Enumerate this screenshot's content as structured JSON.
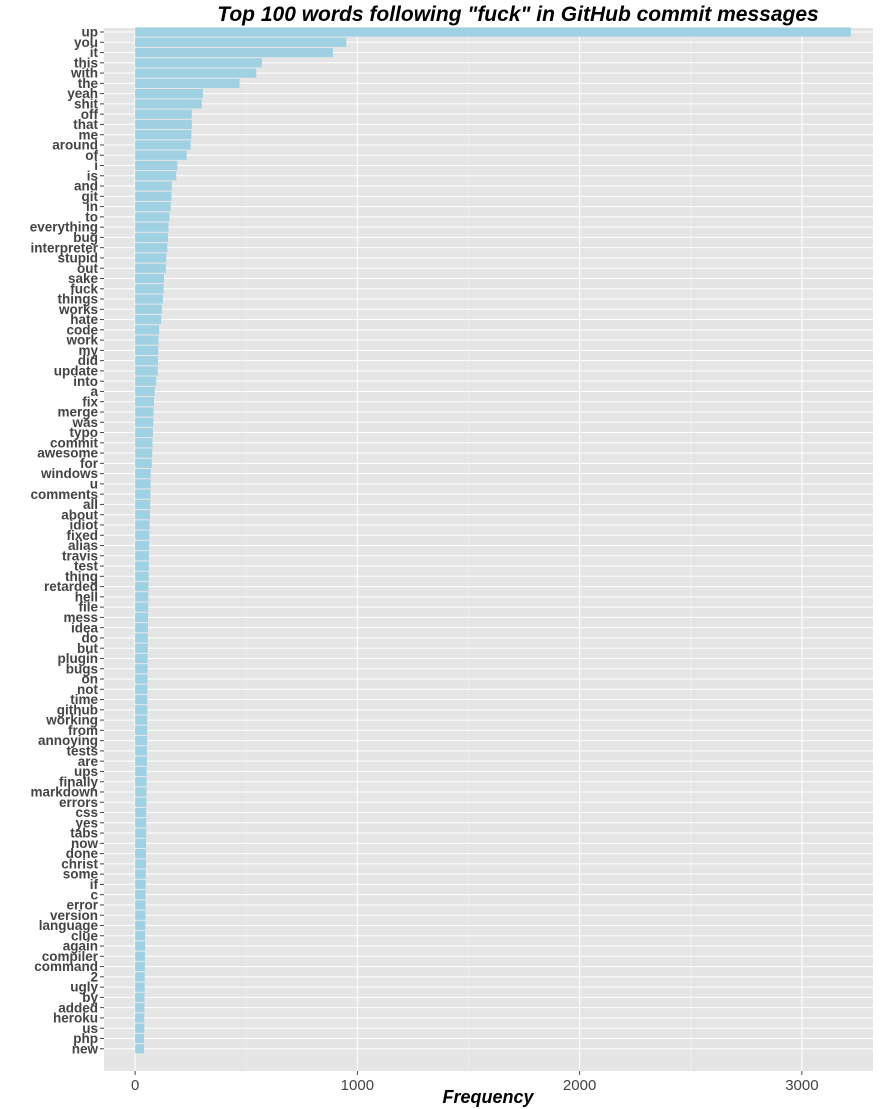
{
  "chart_data": {
    "type": "bar",
    "orientation": "horizontal",
    "title": "Top 100 words following \"fuck\" in GitHub commit messages",
    "xlabel": "Frequency",
    "ylabel": "",
    "xlim": [
      -140,
      3320
    ],
    "xticks": [
      0,
      1000,
      2000,
      3000
    ],
    "xtick_labels": [
      "0",
      "1000",
      "2000",
      "3000"
    ],
    "grid": true,
    "bar_color": "#9fd1e3",
    "panel_background": "#e5e5e5",
    "categories": [
      "up",
      "you",
      "it",
      "this",
      "with",
      "the",
      "yeah",
      "shit",
      "off",
      "that",
      "me",
      "around",
      "of",
      "i",
      "is",
      "and",
      "git",
      "in",
      "to",
      "everything",
      "bug",
      "interpreter",
      "stupid",
      "out",
      "sake",
      "fuck",
      "things",
      "works",
      "hate",
      "code",
      "work",
      "my",
      "did",
      "update",
      "into",
      "a",
      "fix",
      "merge",
      "was",
      "typo",
      "commit",
      "awesome",
      "for",
      "windows",
      "u",
      "comments",
      "all",
      "about",
      "idiot",
      "fixed",
      "alias",
      "travis",
      "test",
      "thing",
      "retarded",
      "hell",
      "file",
      "mess",
      "idea",
      "do",
      "but",
      "plugin",
      "bugs",
      "on",
      "not",
      "time",
      "github",
      "working",
      "from",
      "annoying",
      "tests",
      "are",
      "ups",
      "finally",
      "markdown",
      "errors",
      "css",
      "yes",
      "tabs",
      "now",
      "done",
      "christ",
      "some",
      "if",
      "c",
      "error",
      "version",
      "language",
      "clue",
      "again",
      "compiler",
      "command",
      "2",
      "ugly",
      "by",
      "added",
      "heroku",
      "us",
      "php",
      "new"
    ],
    "values": [
      3220,
      950,
      890,
      570,
      545,
      470,
      305,
      300,
      255,
      255,
      253,
      250,
      232,
      190,
      185,
      165,
      163,
      160,
      155,
      150,
      148,
      145,
      140,
      138,
      130,
      128,
      125,
      120,
      117,
      108,
      105,
      104,
      103,
      102,
      95,
      88,
      85,
      83,
      82,
      80,
      78,
      77,
      75,
      70,
      70,
      69,
      68,
      67,
      65,
      64,
      63,
      62,
      62,
      61,
      60,
      59,
      59,
      58,
      58,
      57,
      57,
      56,
      56,
      56,
      55,
      55,
      55,
      54,
      54,
      54,
      53,
      53,
      52,
      52,
      51,
      51,
      50,
      50,
      50,
      49,
      49,
      49,
      48,
      48,
      47,
      47,
      46,
      46,
      45,
      45,
      44,
      44,
      43,
      43,
      42,
      42,
      41,
      41,
      40,
      40
    ]
  }
}
